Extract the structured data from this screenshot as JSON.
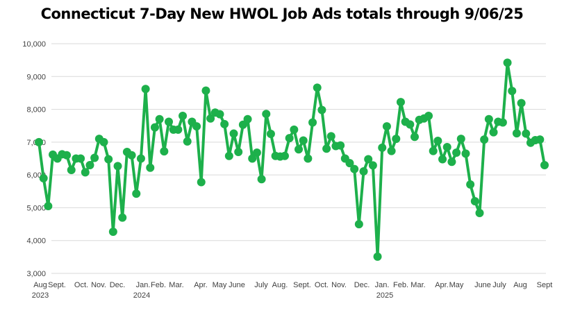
{
  "chart_data": {
    "type": "line",
    "title": "Connecticut 7-Day New HWOL Job Ads totals through 9/06/25",
    "xlabel": "",
    "ylabel": "",
    "ylim": [
      3000,
      10000
    ],
    "y_ticks": [
      "3,000",
      "4,000",
      "5,000",
      "6,000",
      "7,000",
      "8,000",
      "9,000",
      "10,000"
    ],
    "x_ticks": [
      "Aug",
      "Sept.",
      "Oct.",
      "Nov.",
      "Dec.",
      "Jan.",
      "Feb.",
      "Mar.",
      "Apr.",
      "May",
      "June",
      "July",
      "Aug.",
      "Sept.",
      "Oct.",
      "Nov.",
      "Dec.",
      "Jan.",
      "Feb.",
      "Mar.",
      "Apr.",
      "May",
      "June",
      "July",
      "Aug",
      "Sept"
    ],
    "years": [
      "2023",
      "2024",
      "2025"
    ],
    "grid": true,
    "legend": "none",
    "series": [
      {
        "color": "#1db04b",
        "values": [
          7000,
          5900,
          5050,
          6620,
          6500,
          6630,
          6600,
          6150,
          6500,
          6500,
          6080,
          6300,
          6520,
          7100,
          7000,
          6480,
          4270,
          6270,
          4700,
          6700,
          6600,
          5430,
          6500,
          8620,
          6220,
          7450,
          7700,
          6720,
          7620,
          7380,
          7380,
          7800,
          7020,
          7620,
          7480,
          5780,
          8570,
          7720,
          7900,
          7850,
          7550,
          6580,
          7260,
          6700,
          7530,
          7700,
          6500,
          6680,
          5870,
          7860,
          7250,
          6580,
          6560,
          6580,
          7120,
          7380,
          6780,
          7050,
          6500,
          7600,
          8660,
          7980,
          6800,
          7180,
          6880,
          6900,
          6500,
          6360,
          6180,
          4500,
          6110,
          6480,
          6290,
          3510,
          6830,
          7480,
          6730,
          7100,
          8220,
          7620,
          7540,
          7160,
          7680,
          7720,
          7800,
          6730,
          7040,
          6480,
          6850,
          6400,
          6680,
          7100,
          6650,
          5710,
          5200,
          4840,
          7080,
          7700,
          7300,
          7620,
          7600,
          9420,
          8560,
          7270,
          8190,
          7260,
          6980,
          7060,
          7080,
          6300
        ]
      }
    ]
  }
}
